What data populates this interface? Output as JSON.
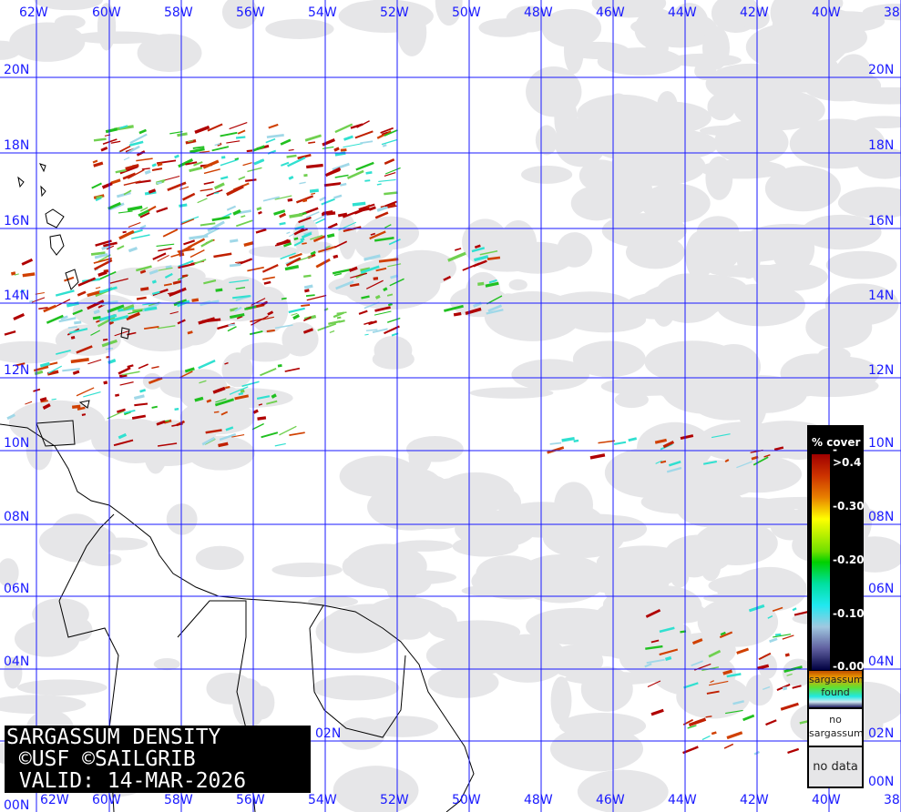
{
  "map": {
    "title_lines": [
      "SARGASSUM DENSITY",
      " ©USF ©SAILGRIB",
      " VALID: 14-MAR-2026"
    ],
    "lon_labels": [
      "62W",
      "60W",
      "58W",
      "56W",
      "54W",
      "52W",
      "50W",
      "48W",
      "46W",
      "44W",
      "42W",
      "40W",
      "38"
    ],
    "lat_labels": [
      "20N",
      "18N",
      "16N",
      "14N",
      "12N",
      "10N",
      "08N",
      "06N",
      "04N",
      "02N",
      "00N"
    ],
    "colors": {
      "grid": "#1a1aff",
      "no_data": "#e6e6e8",
      "no_sargassum": "#ffffff",
      "high": "#b00000",
      "low": "#20e8f0"
    }
  },
  "legend": {
    "title": "% cover",
    "ticks": [
      "->0.4",
      "-0.30",
      "-0.20",
      "-0.10",
      "-0.00"
    ],
    "found_label": [
      "sargassum",
      "found"
    ],
    "no_sargassum_label": [
      "no",
      "sargassum"
    ],
    "no_data_label": "no data"
  }
}
